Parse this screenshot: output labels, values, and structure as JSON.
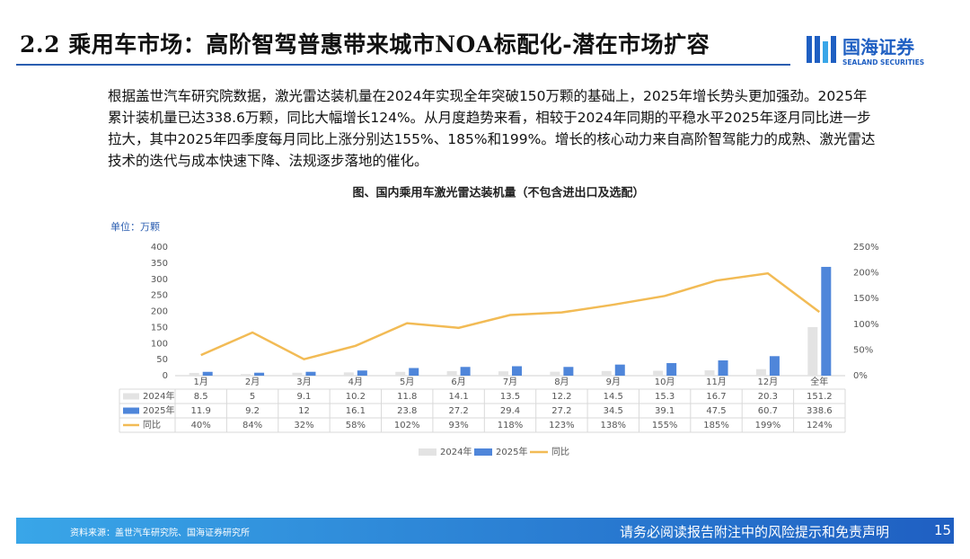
{
  "header": {
    "title": "2.2 乘用车市场：高阶智驾普惠带来城市NOA标配化-潜在市场扩容",
    "logo_name": "国海证券",
    "logo_sub": "SEALAND SECURITIES"
  },
  "body": "根据盖世汽车研究院数据，激光雷达装机量在2024年实现全年突破150万颗的基础上，2025年增长势头更加强劲。2025年累计装机量已达338.6万颗，同比大幅增长124%。从月度趋势来看，相较于2024年同期的平稳水平2025年逐月同比进一步拉大，其中2025年四季度每月同比上涨分别达155%、185%和199%。增长的核心动力来自高阶智驾能力的成熟、激光雷达技术的迭代与成本快速下降、法规逐步落地的催化。",
  "chart_data": {
    "type": "bar",
    "title": "图、国内乘用车激光雷达装机量（不包含进出口及选配）",
    "unit_label": "单位：万颗",
    "categories": [
      "1月",
      "2月",
      "3月",
      "4月",
      "5月",
      "6月",
      "7月",
      "8月",
      "9月",
      "10月",
      "11月",
      "12月",
      "全年"
    ],
    "series": [
      {
        "name": "2024年",
        "color": "#e3e3e3",
        "values": [
          8.5,
          5,
          9.1,
          10.2,
          11.8,
          14.1,
          13.5,
          12.2,
          14.5,
          15.3,
          16.7,
          20.3,
          151.2
        ]
      },
      {
        "name": "2025年",
        "color": "#4f86da",
        "values": [
          11.9,
          9.2,
          12,
          16.1,
          23.8,
          27.2,
          29.4,
          27.2,
          34.5,
          39.1,
          47.5,
          60.7,
          338.6
        ]
      },
      {
        "name": "同比",
        "type": "line",
        "axis": "y2",
        "color": "#f2bb55",
        "values": [
          40,
          84,
          32,
          58,
          102,
          93,
          118,
          123,
          138,
          155,
          185,
          199,
          124
        ],
        "value_labels": [
          "40%",
          "84%",
          "32%",
          "58%",
          "102%",
          "93%",
          "118%",
          "123%",
          "138%",
          "155%",
          "185%",
          "199%",
          "124%"
        ]
      }
    ],
    "ylim": [
      0,
      400
    ],
    "yticks": [
      0,
      50,
      100,
      150,
      200,
      250,
      300,
      350,
      400
    ],
    "y2lim": [
      0,
      250
    ],
    "y2ticks": [
      {
        "value": 0,
        "label": "0%"
      },
      {
        "value": 50,
        "label": "50%"
      },
      {
        "value": 100,
        "label": "100%"
      },
      {
        "value": 150,
        "label": "150%"
      },
      {
        "value": 200,
        "label": "200%"
      },
      {
        "value": 250,
        "label": "250%"
      }
    ]
  },
  "footer": {
    "source": "资料来源：盖世汽车研究院、国海证券研究所",
    "disclaimer": "请务必阅读报告附注中的风险提示和免责声明",
    "page": "15"
  }
}
